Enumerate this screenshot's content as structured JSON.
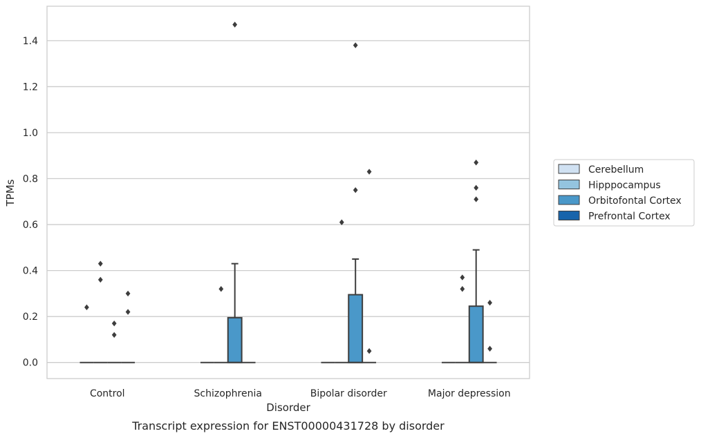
{
  "chart_data": {
    "type": "box",
    "xlabel": "Disorder",
    "ylabel": "TPMs",
    "caption": "Transcript expression for ENST00000431728 by disorder",
    "ylim": [
      -0.07,
      1.55
    ],
    "yticks": [
      "0.0",
      "0.2",
      "0.4",
      "0.6",
      "0.8",
      "1.0",
      "1.2",
      "1.4"
    ],
    "grid": "horizontal",
    "legend_position": "right",
    "categories": [
      "Control",
      "Schizophrenia",
      "Bipolar disorder",
      "Major depression"
    ],
    "series": [
      {
        "name": "Cerebellum",
        "color": "#d0e1f2",
        "boxes": [
          {
            "q1": 0,
            "median": 0,
            "q3": 0,
            "whisker_low": 0,
            "whisker_high": 0,
            "outliers": [
              0.24
            ]
          },
          {
            "q1": 0,
            "median": 0,
            "q3": 0,
            "whisker_low": 0,
            "whisker_high": 0,
            "outliers": []
          },
          {
            "q1": 0,
            "median": 0,
            "q3": 0,
            "whisker_low": 0,
            "whisker_high": 0,
            "outliers": []
          },
          {
            "q1": 0,
            "median": 0,
            "q3": 0,
            "whisker_low": 0,
            "whisker_high": 0,
            "outliers": []
          }
        ]
      },
      {
        "name": "Hipppocampus",
        "color": "#94c4df",
        "boxes": [
          {
            "q1": 0,
            "median": 0,
            "q3": 0,
            "whisker_low": 0,
            "whisker_high": 0,
            "outliers": [
              0.43,
              0.36
            ]
          },
          {
            "q1": 0,
            "median": 0,
            "q3": 0,
            "whisker_low": 0,
            "whisker_high": 0,
            "outliers": [
              0.32
            ]
          },
          {
            "q1": 0,
            "median": 0,
            "q3": 0,
            "whisker_low": 0,
            "whisker_high": 0,
            "outliers": [
              0.61
            ]
          },
          {
            "q1": 0,
            "median": 0,
            "q3": 0,
            "whisker_low": 0,
            "whisker_high": 0,
            "outliers": [
              0.37,
              0.32
            ]
          }
        ]
      },
      {
        "name": "Orbitofontal Cortex",
        "color": "#4a98c9",
        "boxes": [
          {
            "q1": 0,
            "median": 0,
            "q3": 0,
            "whisker_low": 0,
            "whisker_high": 0,
            "outliers": [
              0.17,
              0.12
            ]
          },
          {
            "q1": 0,
            "median": 0,
            "q3": 0.195,
            "whisker_low": 0,
            "whisker_high": 0.43,
            "outliers": [
              1.47
            ]
          },
          {
            "q1": 0,
            "median": 0,
            "q3": 0.295,
            "whisker_low": 0,
            "whisker_high": 0.45,
            "outliers": [
              1.38,
              0.75
            ]
          },
          {
            "q1": 0,
            "median": 0,
            "q3": 0.245,
            "whisker_low": 0,
            "whisker_high": 0.49,
            "outliers": [
              0.87,
              0.76,
              0.71
            ]
          }
        ]
      },
      {
        "name": "Prefrontal Cortex",
        "color": "#1764ab",
        "boxes": [
          {
            "q1": 0,
            "median": 0,
            "q3": 0,
            "whisker_low": 0,
            "whisker_high": 0,
            "outliers": [
              0.3,
              0.22
            ]
          },
          {
            "q1": 0,
            "median": 0,
            "q3": 0,
            "whisker_low": 0,
            "whisker_high": 0,
            "outliers": []
          },
          {
            "q1": 0,
            "median": 0,
            "q3": 0,
            "whisker_low": 0,
            "whisker_high": 0,
            "outliers": [
              0.83,
              0.05
            ]
          },
          {
            "q1": 0,
            "median": 0,
            "q3": 0,
            "whisker_low": 0,
            "whisker_high": 0,
            "outliers": [
              0.26,
              0.06
            ]
          }
        ]
      }
    ]
  }
}
